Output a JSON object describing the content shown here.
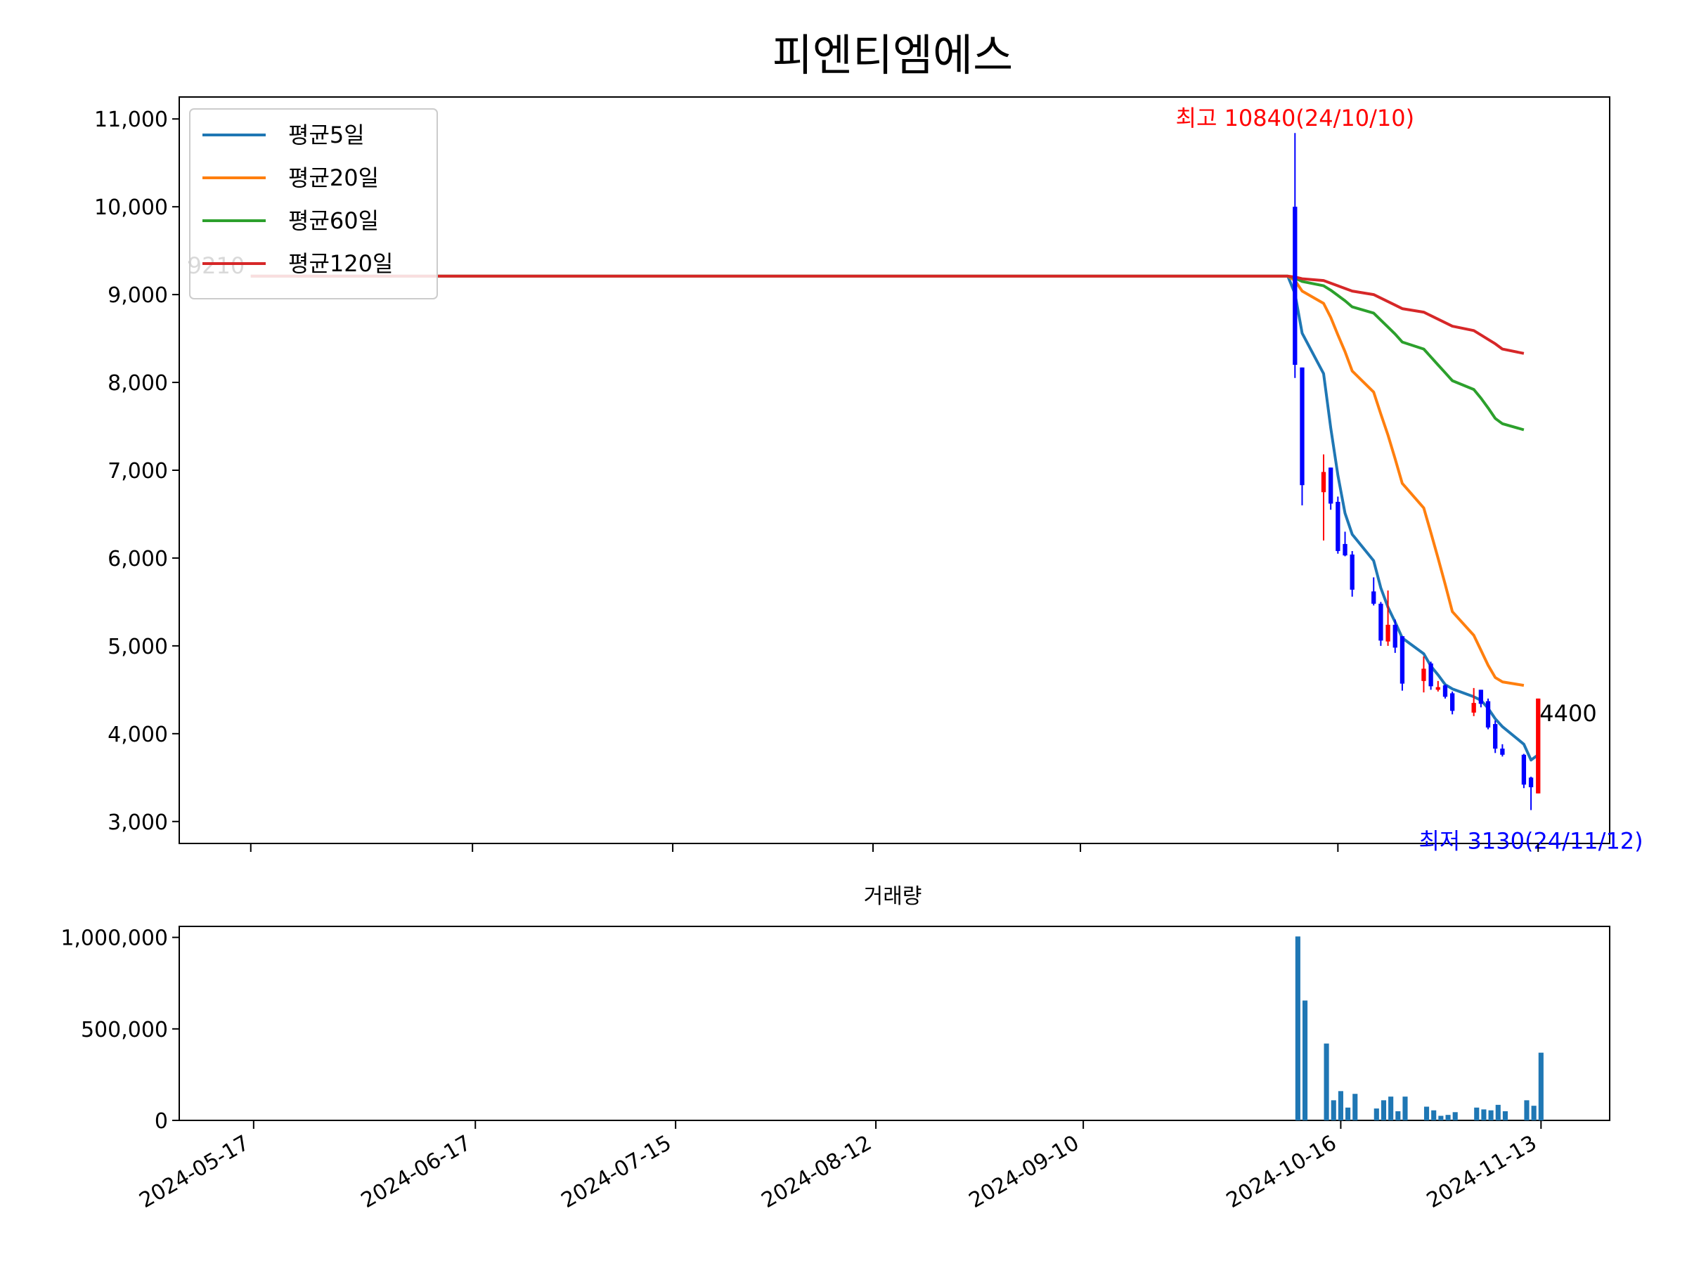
{
  "chart_data": {
    "type": "candlestick",
    "title": "피엔티엠에스",
    "price_panel": {
      "ylim": [
        2750,
        11250
      ],
      "yticks": [
        3000,
        4000,
        5000,
        6000,
        7000,
        8000,
        9000,
        10000,
        11000
      ],
      "ytick_labels": [
        "3,000",
        "4,000",
        "5,000",
        "6,000",
        "7,000",
        "8,000",
        "9,000",
        "10,000",
        "11,000"
      ],
      "legend": {
        "location": "upper-left",
        "entries": [
          {
            "label": "평균5일",
            "color": "#1f77b4"
          },
          {
            "label": "평균20일",
            "color": "#ff7f0e"
          },
          {
            "label": "평균60일",
            "color": "#2ca02c"
          },
          {
            "label": "평균120일",
            "color": "#d62728"
          }
        ]
      },
      "annotations": {
        "high": {
          "text": "최고 10840(24/10/10)",
          "date": "2024-10-10",
          "value": 10840,
          "color": "#ff0000"
        },
        "low": {
          "text": "최저 3130(24/11/12)",
          "date": "2024-11-12",
          "value": 3130,
          "color": "#0000ff"
        },
        "last": {
          "text": "4400",
          "date": "2024-11-13",
          "value": 4400,
          "color": "#000000"
        },
        "first": {
          "text": "9210",
          "date": "2024-05-17",
          "value": 9210,
          "color": "#000000"
        }
      },
      "candles": [
        {
          "date": "2024-10-10",
          "open": 10000,
          "high": 10840,
          "low": 8050,
          "close": 8200
        },
        {
          "date": "2024-10-11",
          "open": 8170,
          "high": 8170,
          "low": 6600,
          "close": 6830
        },
        {
          "date": "2024-10-14",
          "open": 6750,
          "high": 7180,
          "low": 6200,
          "close": 6980
        },
        {
          "date": "2024-10-15",
          "open": 7030,
          "high": 7030,
          "low": 6550,
          "close": 6620
        },
        {
          "date": "2024-10-16",
          "open": 6640,
          "high": 6700,
          "low": 6050,
          "close": 6080
        },
        {
          "date": "2024-10-17",
          "open": 6160,
          "high": 6300,
          "low": 6020,
          "close": 6030
        },
        {
          "date": "2024-10-18",
          "open": 6040,
          "high": 6080,
          "low": 5560,
          "close": 5640
        },
        {
          "date": "2024-10-21",
          "open": 5620,
          "high": 5780,
          "low": 5460,
          "close": 5480
        },
        {
          "date": "2024-10-22",
          "open": 5480,
          "high": 5500,
          "low": 5000,
          "close": 5060
        },
        {
          "date": "2024-10-23",
          "open": 5050,
          "high": 5630,
          "low": 5000,
          "close": 5240
        },
        {
          "date": "2024-10-24",
          "open": 5240,
          "high": 5300,
          "low": 4920,
          "close": 4980
        },
        {
          "date": "2024-10-25",
          "open": 5110,
          "high": 5110,
          "low": 4490,
          "close": 4570
        },
        {
          "date": "2024-10-28",
          "open": 4600,
          "high": 4880,
          "low": 4470,
          "close": 4740
        },
        {
          "date": "2024-10-29",
          "open": 4800,
          "high": 4820,
          "low": 4500,
          "close": 4540
        },
        {
          "date": "2024-10-30",
          "open": 4500,
          "high": 4600,
          "low": 4480,
          "close": 4530
        },
        {
          "date": "2024-10-31",
          "open": 4550,
          "high": 4560,
          "low": 4400,
          "close": 4420
        },
        {
          "date": "2024-11-01",
          "open": 4460,
          "high": 4480,
          "low": 4220,
          "close": 4260
        },
        {
          "date": "2024-11-04",
          "open": 4240,
          "high": 4520,
          "low": 4200,
          "close": 4350
        },
        {
          "date": "2024-11-05",
          "open": 4500,
          "high": 4500,
          "low": 4300,
          "close": 4340
        },
        {
          "date": "2024-11-06",
          "open": 4370,
          "high": 4400,
          "low": 4050,
          "close": 4070
        },
        {
          "date": "2024-11-07",
          "open": 4110,
          "high": 4150,
          "low": 3780,
          "close": 3830
        },
        {
          "date": "2024-11-08",
          "open": 3830,
          "high": 3880,
          "low": 3740,
          "close": 3760
        },
        {
          "date": "2024-11-11",
          "open": 3760,
          "high": 3770,
          "low": 3380,
          "close": 3420
        },
        {
          "date": "2024-11-12",
          "open": 3500,
          "high": 3510,
          "low": 3130,
          "close": 3390
        },
        {
          "date": "2024-11-13",
          "open": 3320,
          "high": 4400,
          "low": 3320,
          "close": 4400
        }
      ],
      "series": [
        {
          "name": "평균5일",
          "color": "#1f77b4",
          "points": [
            [
              "2024-05-17",
              9210
            ],
            [
              "2024-10-09",
              9210
            ],
            [
              "2024-10-10",
              9010
            ],
            [
              "2024-10-11",
              8560
            ],
            [
              "2024-10-14",
              8100
            ],
            [
              "2024-10-15",
              7480
            ],
            [
              "2024-10-16",
              6940
            ],
            [
              "2024-10-17",
              6510
            ],
            [
              "2024-10-18",
              6270
            ],
            [
              "2024-10-21",
              5970
            ],
            [
              "2024-10-22",
              5660
            ],
            [
              "2024-10-23",
              5440
            ],
            [
              "2024-10-24",
              5270
            ],
            [
              "2024-10-25",
              5090
            ],
            [
              "2024-10-28",
              4910
            ],
            [
              "2024-10-29",
              4770
            ],
            [
              "2024-10-30",
              4670
            ],
            [
              "2024-10-31",
              4560
            ],
            [
              "2024-11-01",
              4510
            ],
            [
              "2024-11-04",
              4420
            ],
            [
              "2024-11-05",
              4380
            ],
            [
              "2024-11-06",
              4290
            ],
            [
              "2024-11-07",
              4170
            ],
            [
              "2024-11-08",
              4080
            ],
            [
              "2024-11-11",
              3880
            ],
            [
              "2024-11-12",
              3700
            ],
            [
              "2024-11-13",
              3760
            ]
          ]
        },
        {
          "name": "평균20일",
          "color": "#ff7f0e",
          "points": [
            [
              "2024-05-17",
              9210
            ],
            [
              "2024-10-09",
              9210
            ],
            [
              "2024-10-10",
              9160
            ],
            [
              "2024-10-11",
              9040
            ],
            [
              "2024-10-14",
              8900
            ],
            [
              "2024-10-15",
              8740
            ],
            [
              "2024-10-16",
              8540
            ],
            [
              "2024-10-17",
              8350
            ],
            [
              "2024-10-18",
              8130
            ],
            [
              "2024-10-21",
              7890
            ],
            [
              "2024-10-22",
              7640
            ],
            [
              "2024-10-23",
              7400
            ],
            [
              "2024-10-24",
              7130
            ],
            [
              "2024-10-25",
              6850
            ],
            [
              "2024-10-28",
              6570
            ],
            [
              "2024-10-29",
              6290
            ],
            [
              "2024-10-30",
              6000
            ],
            [
              "2024-10-31",
              5700
            ],
            [
              "2024-11-01",
              5390
            ],
            [
              "2024-11-04",
              5120
            ],
            [
              "2024-11-05",
              4950
            ],
            [
              "2024-11-06",
              4780
            ],
            [
              "2024-11-07",
              4640
            ],
            [
              "2024-11-08",
              4590
            ],
            [
              "2024-11-11",
              4550
            ]
          ]
        },
        {
          "name": "평균60일",
          "color": "#2ca02c",
          "points": [
            [
              "2024-05-17",
              9210
            ],
            [
              "2024-10-09",
              9210
            ],
            [
              "2024-10-10",
              9190
            ],
            [
              "2024-10-11",
              9150
            ],
            [
              "2024-10-14",
              9100
            ],
            [
              "2024-10-15",
              9050
            ],
            [
              "2024-10-16",
              8990
            ],
            [
              "2024-10-17",
              8930
            ],
            [
              "2024-10-18",
              8860
            ],
            [
              "2024-10-21",
              8790
            ],
            [
              "2024-10-22",
              8710
            ],
            [
              "2024-10-23",
              8630
            ],
            [
              "2024-10-24",
              8550
            ],
            [
              "2024-10-25",
              8460
            ],
            [
              "2024-10-28",
              8380
            ],
            [
              "2024-10-29",
              8290
            ],
            [
              "2024-10-30",
              8200
            ],
            [
              "2024-10-31",
              8110
            ],
            [
              "2024-11-01",
              8020
            ],
            [
              "2024-11-04",
              7920
            ],
            [
              "2024-11-05",
              7820
            ],
            [
              "2024-11-06",
              7710
            ],
            [
              "2024-11-07",
              7590
            ],
            [
              "2024-11-08",
              7530
            ],
            [
              "2024-11-11",
              7460
            ]
          ]
        },
        {
          "name": "평균120일",
          "color": "#d62728",
          "points": [
            [
              "2024-05-17",
              9210
            ],
            [
              "2024-10-09",
              9210
            ],
            [
              "2024-10-10",
              9200
            ],
            [
              "2024-10-11",
              9180
            ],
            [
              "2024-10-14",
              9160
            ],
            [
              "2024-10-15",
              9130
            ],
            [
              "2024-10-16",
              9100
            ],
            [
              "2024-10-17",
              9070
            ],
            [
              "2024-10-18",
              9040
            ],
            [
              "2024-10-21",
              9000
            ],
            [
              "2024-10-22",
              8960
            ],
            [
              "2024-10-23",
              8920
            ],
            [
              "2024-10-24",
              8880
            ],
            [
              "2024-10-25",
              8840
            ],
            [
              "2024-10-28",
              8800
            ],
            [
              "2024-10-29",
              8760
            ],
            [
              "2024-10-30",
              8720
            ],
            [
              "2024-10-31",
              8680
            ],
            [
              "2024-11-01",
              8640
            ],
            [
              "2024-11-04",
              8590
            ],
            [
              "2024-11-05",
              8540
            ],
            [
              "2024-11-06",
              8490
            ],
            [
              "2024-11-07",
              8440
            ],
            [
              "2024-11-08",
              8380
            ],
            [
              "2024-11-11",
              8330
            ]
          ]
        }
      ]
    },
    "volume_panel": {
      "title": "거래량",
      "type": "bar",
      "color": "#1f77b4",
      "ylim": [
        0,
        1060000
      ],
      "yticks": [
        0,
        500000,
        1000000
      ],
      "ytick_labels": [
        "0",
        "500,000",
        "1,000,000"
      ],
      "bars": [
        {
          "date": "2024-10-10",
          "value": 1005000
        },
        {
          "date": "2024-10-11",
          "value": 655000
        },
        {
          "date": "2024-10-14",
          "value": 420000
        },
        {
          "date": "2024-10-15",
          "value": 110000
        },
        {
          "date": "2024-10-16",
          "value": 160000
        },
        {
          "date": "2024-10-17",
          "value": 70000
        },
        {
          "date": "2024-10-18",
          "value": 145000
        },
        {
          "date": "2024-10-21",
          "value": 65000
        },
        {
          "date": "2024-10-22",
          "value": 110000
        },
        {
          "date": "2024-10-23",
          "value": 130000
        },
        {
          "date": "2024-10-24",
          "value": 50000
        },
        {
          "date": "2024-10-25",
          "value": 130000
        },
        {
          "date": "2024-10-28",
          "value": 75000
        },
        {
          "date": "2024-10-29",
          "value": 55000
        },
        {
          "date": "2024-10-30",
          "value": 25000
        },
        {
          "date": "2024-10-31",
          "value": 30000
        },
        {
          "date": "2024-11-01",
          "value": 45000
        },
        {
          "date": "2024-11-04",
          "value": 70000
        },
        {
          "date": "2024-11-05",
          "value": 60000
        },
        {
          "date": "2024-11-06",
          "value": 55000
        },
        {
          "date": "2024-11-07",
          "value": 85000
        },
        {
          "date": "2024-11-08",
          "value": 50000
        },
        {
          "date": "2024-11-11",
          "value": 110000
        },
        {
          "date": "2024-11-12",
          "value": 80000
        },
        {
          "date": "2024-11-13",
          "value": 370000
        }
      ]
    },
    "x_axis": {
      "type": "date",
      "range": [
        "2024-05-07",
        "2024-11-23"
      ],
      "ticks": [
        "2024-05-17",
        "2024-06-17",
        "2024-07-15",
        "2024-08-12",
        "2024-09-10",
        "2024-10-16",
        "2024-11-13"
      ],
      "tick_label_rotation": -30
    },
    "colors": {
      "up": "#ff0000",
      "down": "#0000ff"
    }
  }
}
